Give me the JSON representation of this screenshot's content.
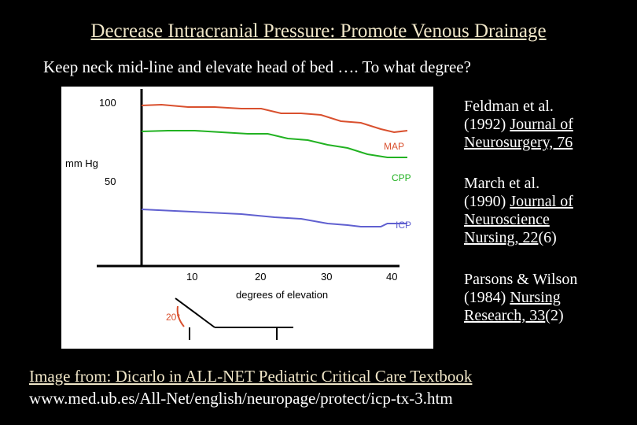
{
  "slide": {
    "title": "Decrease Intracranial Pressure: Promote Venous Drainage",
    "subtitle": "Keep neck mid-line and elevate head of bed …. To what degree?"
  },
  "references": [
    {
      "line1": "Feldman et al.",
      "line2_prefix": "(1992) ",
      "line2_link": "Journal of",
      "line3_link": "Neurosurgery, 76",
      "line3_suffix": "",
      "line4_link": "",
      "line4_suffix": ""
    },
    {
      "line1": "March et al.",
      "line2_prefix": "(1990) ",
      "line2_link": "Journal of",
      "line3_link": "Neuroscience",
      "line3_suffix": "",
      "line4_link": "Nursing, 22",
      "line4_suffix": "(6)"
    },
    {
      "line1": "Parsons & Wilson",
      "line2_prefix": "(1984) ",
      "line2_link": "Nursing",
      "line3_link": "Research, 33",
      "line3_suffix": "(2)",
      "line4_link": "",
      "line4_suffix": ""
    }
  ],
  "credit": {
    "line1": "Image from:  Dicarlo in ALL-NET Pediatric Critical Care Textbook",
    "line2": "www.med.ub.es/All-Net/english/neuropage/protect/icp-tx-3.htm"
  },
  "chart_data": {
    "type": "line",
    "xlabel": "degrees of elevation",
    "ylabel": "mm Hg",
    "x_ticks": [
      "10",
      "20",
      "30",
      "40"
    ],
    "y_ticks": [
      "100",
      "50"
    ],
    "xlim": [
      0,
      40
    ],
    "ylim": [
      0,
      100
    ],
    "grid": false,
    "series": [
      {
        "name": "MAP",
        "color": "#d9502e",
        "points": [
          [
            0,
            98
          ],
          [
            3,
            98.5
          ],
          [
            7,
            97
          ],
          [
            11,
            97
          ],
          [
            15,
            96
          ],
          [
            18,
            96
          ],
          [
            21,
            93
          ],
          [
            24,
            93
          ],
          [
            27,
            92
          ],
          [
            30,
            88
          ],
          [
            33,
            87
          ],
          [
            36,
            83
          ],
          [
            38,
            81
          ],
          [
            40,
            82
          ]
        ]
      },
      {
        "name": "CPP",
        "color": "#22b222",
        "points": [
          [
            0,
            81.5
          ],
          [
            4,
            82
          ],
          [
            8,
            82
          ],
          [
            12,
            81
          ],
          [
            16,
            80
          ],
          [
            19,
            80
          ],
          [
            22,
            77
          ],
          [
            25,
            76
          ],
          [
            28,
            73
          ],
          [
            31,
            71
          ],
          [
            34,
            67
          ],
          [
            37,
            65
          ],
          [
            40,
            65
          ]
        ]
      },
      {
        "name": "ICP",
        "color": "#6060d0",
        "points": [
          [
            0,
            32
          ],
          [
            5,
            31
          ],
          [
            10,
            30
          ],
          [
            15,
            29
          ],
          [
            20,
            27
          ],
          [
            24,
            26
          ],
          [
            28,
            23
          ],
          [
            31,
            22
          ],
          [
            33,
            21
          ],
          [
            36,
            21
          ],
          [
            37,
            23
          ],
          [
            39,
            23
          ],
          [
            40,
            23
          ]
        ]
      }
    ],
    "inset": {
      "angle_label": "20°"
    }
  }
}
